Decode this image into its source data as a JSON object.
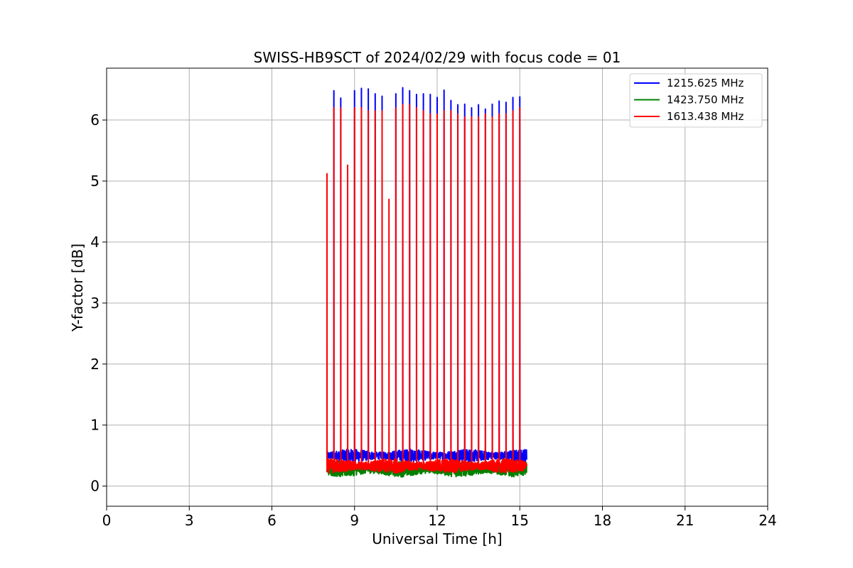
{
  "chart_data": {
    "type": "line",
    "title": "SWISS-HB9SCT of 2024/02/29 with focus code = 01",
    "xlabel": "Universal Time [h]",
    "ylabel": "Y-factor [dB]",
    "xlim": [
      0,
      24
    ],
    "ylim": [
      -0.33,
      6.85
    ],
    "xticks": [
      0,
      3,
      6,
      9,
      12,
      15,
      18,
      21,
      24
    ],
    "yticks": [
      0,
      1,
      2,
      3,
      4,
      5,
      6
    ],
    "grid": true,
    "legend_position": "upper right",
    "time_range": [
      8.0,
      15.25
    ],
    "series": [
      {
        "name": "1215.625 MHz",
        "color": "#0000ff",
        "baseline": 0.5,
        "noise": 0.08,
        "spikes": [
          [
            8.25,
            6.48
          ],
          [
            8.5,
            6.36
          ],
          [
            9.0,
            6.48
          ],
          [
            9.25,
            6.52
          ],
          [
            9.5,
            6.51
          ],
          [
            9.75,
            6.43
          ],
          [
            10.0,
            6.39
          ],
          [
            10.5,
            6.43
          ],
          [
            10.75,
            6.53
          ],
          [
            11.0,
            6.48
          ],
          [
            11.25,
            6.42
          ],
          [
            11.5,
            6.43
          ],
          [
            11.75,
            6.42
          ],
          [
            12.0,
            6.37
          ],
          [
            12.25,
            6.49
          ],
          [
            12.5,
            6.32
          ],
          [
            12.75,
            6.25
          ],
          [
            13.0,
            6.26
          ],
          [
            13.25,
            6.2
          ],
          [
            13.5,
            6.25
          ],
          [
            13.75,
            6.18
          ],
          [
            14.0,
            6.26
          ],
          [
            14.25,
            6.31
          ],
          [
            14.5,
            6.29
          ],
          [
            14.75,
            6.37
          ],
          [
            15.0,
            6.38
          ]
        ]
      },
      {
        "name": "1423.750 MHz",
        "color": "#008000",
        "baseline": 0.28,
        "noise": 0.1,
        "spikes": []
      },
      {
        "name": "1613.438 MHz",
        "color": "#ff0000",
        "baseline": 0.33,
        "noise": 0.09,
        "spikes": [
          [
            8.0,
            5.12
          ],
          [
            8.25,
            6.2
          ],
          [
            8.5,
            6.2
          ],
          [
            8.75,
            5.26
          ],
          [
            9.0,
            6.2
          ],
          [
            9.25,
            6.2
          ],
          [
            9.5,
            6.15
          ],
          [
            9.75,
            6.15
          ],
          [
            10.0,
            6.15
          ],
          [
            10.25,
            4.7
          ],
          [
            10.5,
            6.2
          ],
          [
            10.75,
            6.25
          ],
          [
            11.0,
            6.25
          ],
          [
            11.25,
            6.2
          ],
          [
            11.5,
            6.15
          ],
          [
            11.75,
            6.1
          ],
          [
            12.0,
            6.1
          ],
          [
            12.25,
            6.15
          ],
          [
            12.5,
            6.15
          ],
          [
            12.75,
            6.1
          ],
          [
            13.0,
            6.05
          ],
          [
            13.25,
            6.05
          ],
          [
            13.5,
            6.05
          ],
          [
            13.75,
            6.1
          ],
          [
            14.0,
            6.05
          ],
          [
            14.25,
            6.1
          ],
          [
            14.5,
            6.1
          ],
          [
            14.75,
            6.15
          ],
          [
            15.0,
            6.2
          ]
        ]
      }
    ]
  }
}
